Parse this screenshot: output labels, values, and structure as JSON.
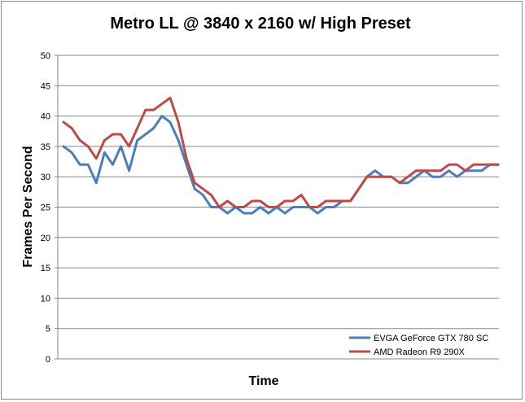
{
  "chart_data": {
    "type": "line",
    "title": "Metro LL  @ 3840 x 2160 w/ High Preset",
    "xlabel": "Time",
    "ylabel": "Frames Per Second",
    "ylim": [
      0,
      50
    ],
    "yticks": [
      0,
      5,
      10,
      15,
      20,
      25,
      30,
      35,
      40,
      45,
      50
    ],
    "grid": true,
    "legend_position": "bottom-right",
    "series": [
      {
        "name": "EVGA GeForce GTX 780 SC",
        "color": "#4a7ebb",
        "values": [
          35,
          34,
          32,
          32,
          29,
          34,
          32,
          35,
          31,
          36,
          37,
          38,
          40,
          39,
          36,
          32,
          28,
          27,
          25,
          25,
          24,
          25,
          24,
          24,
          25,
          24,
          25,
          24,
          25,
          25,
          25,
          24,
          25,
          25,
          26,
          26,
          28,
          30,
          31,
          30,
          30,
          29,
          29,
          30,
          31,
          30,
          30,
          31,
          30,
          31,
          31,
          31,
          32,
          32
        ]
      },
      {
        "name": "AMD Radeon R9 290X",
        "color": "#be4b48",
        "values": [
          39,
          38,
          36,
          35,
          33,
          36,
          37,
          37,
          35,
          38,
          41,
          41,
          42,
          43,
          39,
          33,
          29,
          28,
          27,
          25,
          26,
          25,
          25,
          26,
          26,
          25,
          25,
          26,
          26,
          27,
          25,
          25,
          26,
          26,
          26,
          26,
          28,
          30,
          30,
          30,
          30,
          29,
          30,
          31,
          31,
          31,
          31,
          32,
          32,
          31,
          32,
          32,
          32,
          32
        ]
      }
    ]
  }
}
